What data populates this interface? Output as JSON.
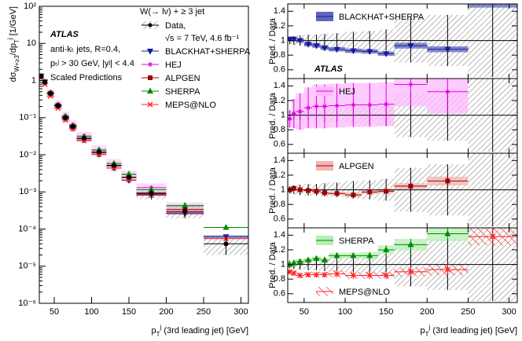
{
  "chart_data": {
    "type": "ratio-histogram",
    "y_label": [
      {
        "text": "dσ",
        "style": "normal"
      },
      {
        "text": "W+≥3",
        "style": "sub"
      },
      {
        "text": "/dp",
        "style": "normal"
      },
      {
        "text": "T",
        "style": "sub"
      },
      {
        "text": "j",
        "style": "sup"
      },
      {
        "text": " [1/GeV]",
        "style": "normal"
      }
    ],
    "x_label": [
      {
        "text": "p",
        "style": "normal"
      },
      {
        "text": "T",
        "style": "sub"
      },
      {
        "text": "j",
        "style": "sup"
      },
      {
        "text": " (3rd leading jet) [GeV]",
        "style": "normal"
      }
    ],
    "ratio_label": "Pred. / Data",
    "atlas_label": "ATLAS",
    "annotations": [
      "anti-kₜ jets, R=0.4,",
      "pₜʲ > 30 GeV, |yʲ| < 4.4",
      "Scaled Predictions"
    ],
    "legend_title": "W(→ lν) + ≥ 3 jet",
    "data_label": "Data,",
    "data_label_2": "√s = 7 TeV, 4.6 fb⁻¹",
    "bin_edges": [
      30,
      35,
      40,
      50,
      60,
      70,
      80,
      100,
      120,
      140,
      160,
      200,
      250,
      310
    ],
    "xlim": [
      30,
      310
    ],
    "xticks": [
      50,
      100,
      150,
      200,
      250,
      300
    ],
    "ylim": [
      1e-06,
      100
    ],
    "yticks": [
      {
        "value": 1e-06,
        "label": "10⁻⁶"
      },
      {
        "value": 1e-05,
        "label": "10⁻⁵"
      },
      {
        "value": 0.0001,
        "label": "10⁻⁴"
      },
      {
        "value": 0.001,
        "label": "10⁻³"
      },
      {
        "value": 0.01,
        "label": "10⁻²"
      },
      {
        "value": 0.1,
        "label": "10⁻¹"
      },
      1,
      10,
      {
        "value": 100,
        "label": "10²"
      }
    ],
    "log_y": true,
    "ratio_ylim": [
      0.48,
      1.5
    ],
    "ratio_yticks": [
      0.6,
      0.8,
      1,
      1.2,
      1.4
    ],
    "data": [
      1.3,
      0.9,
      0.45,
      0.21,
      0.1,
      0.058,
      0.028,
      0.012,
      0.0052,
      0.0025,
      0.0009,
      0.0003,
      4e-05
    ],
    "data_rel_uncertainty": [
      0.05,
      0.06,
      0.07,
      0.08,
      0.08,
      0.09,
      0.1,
      0.12,
      0.13,
      0.15,
      0.3,
      0.35,
      0.5
    ],
    "series": [
      {
        "name": "BLACKHAT+SHERPA",
        "color": "#1a1a9a",
        "band_color": "#5c66bd",
        "marker": "tri-down",
        "values": [
          1.33,
          0.92,
          0.45,
          0.2,
          0.093,
          0.052,
          0.025,
          0.0103,
          0.0044,
          0.00205,
          0.00084,
          0.00026,
          6.2e-05
        ],
        "ratio": [
          1.02,
          1.02,
          1.0,
          0.95,
          0.93,
          0.9,
          0.88,
          0.86,
          0.85,
          0.82,
          0.93,
          0.88,
          1.55
        ],
        "ratio_uncertainty": [
          0.03,
          0.03,
          0.03,
          0.03,
          0.03,
          0.03,
          0.03,
          0.03,
          0.03,
          0.03,
          0.04,
          0.04,
          0.1
        ]
      },
      {
        "name": "HEJ",
        "color": "#e000e0",
        "band_color": "#ffb8ff",
        "marker": "star",
        "values": [
          1.24,
          0.92,
          0.47,
          0.23,
          0.112,
          0.065,
          0.032,
          0.0137,
          0.0059,
          0.0029,
          0.0013,
          0.0004,
          null
        ],
        "ratio": [
          0.95,
          1.02,
          1.05,
          1.1,
          1.12,
          1.12,
          1.13,
          1.14,
          1.14,
          1.15,
          1.42,
          1.32,
          null
        ],
        "ratio_uncertainty": [
          0.12,
          0.2,
          0.25,
          0.28,
          0.3,
          0.3,
          0.3,
          0.3,
          0.3,
          0.3,
          0.3,
          0.3,
          null
        ]
      },
      {
        "name": "ALPGEN",
        "color": "#a00000",
        "band_color": "#f2b4b4",
        "marker": "square",
        "values": [
          1.3,
          0.92,
          0.45,
          0.21,
          0.098,
          0.056,
          0.027,
          0.0112,
          0.005,
          0.00245,
          0.00095,
          0.00034,
          null
        ],
        "ratio": [
          1.0,
          1.02,
          1.0,
          0.99,
          0.98,
          0.96,
          0.95,
          0.93,
          0.97,
          0.98,
          1.05,
          1.12,
          null
        ],
        "ratio_uncertainty": [
          0.02,
          0.02,
          0.02,
          0.02,
          0.02,
          0.02,
          0.02,
          0.03,
          0.03,
          0.03,
          0.04,
          0.06,
          null
        ]
      },
      {
        "name": "SHERPA",
        "color": "#008a00",
        "band_color": "#b6efb6",
        "marker": "tri-up",
        "values": [
          1.3,
          0.92,
          0.47,
          0.22,
          0.108,
          0.061,
          0.031,
          0.0134,
          0.0058,
          0.003,
          0.00114,
          0.00043,
          0.00011
        ],
        "ratio": [
          1.0,
          1.02,
          1.04,
          1.06,
          1.08,
          1.06,
          1.12,
          1.12,
          1.12,
          1.2,
          1.27,
          1.42,
          null
        ],
        "ratio_uncertainty": [
          0.02,
          0.02,
          0.03,
          0.03,
          0.03,
          0.03,
          0.04,
          0.04,
          0.05,
          0.06,
          0.08,
          0.1,
          null
        ]
      },
      {
        "name": "MEPS@NLO",
        "color": "#ff2020",
        "band_color": "#ff2020",
        "marker": "cross",
        "hatched": true,
        "values": [
          1.17,
          0.79,
          0.38,
          0.18,
          0.086,
          0.05,
          0.024,
          0.0102,
          0.0044,
          0.0021,
          0.00081,
          0.00028,
          5.5e-05
        ],
        "ratio": [
          0.9,
          0.88,
          0.85,
          0.86,
          0.86,
          0.86,
          0.87,
          0.85,
          0.85,
          0.85,
          0.9,
          0.93,
          1.38
        ],
        "ratio_uncertainty": [
          0.04,
          0.04,
          0.04,
          0.04,
          0.04,
          0.04,
          0.05,
          0.05,
          0.05,
          0.05,
          0.06,
          0.08,
          0.12
        ]
      }
    ],
    "ratio_panels": [
      [
        0
      ],
      [
        1
      ],
      [
        2
      ],
      [
        3,
        4
      ]
    ]
  }
}
